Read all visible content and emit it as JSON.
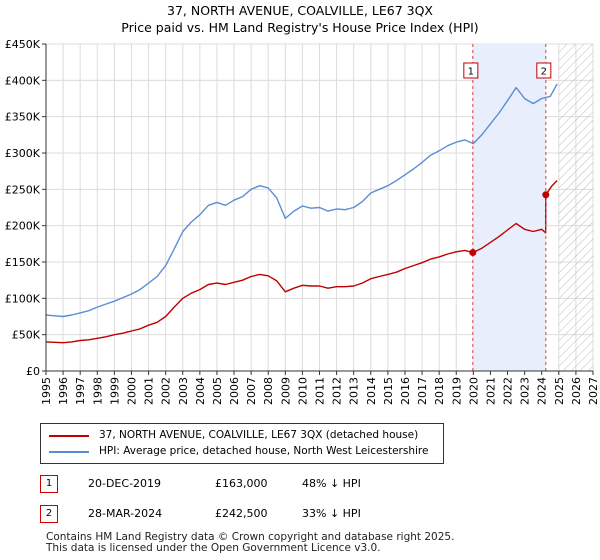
{
  "title": "37, NORTH AVENUE, COALVILLE, LE67 3QX",
  "subtitle": "Price paid vs. HM Land Registry's House Price Index (HPI)",
  "chart_data": {
    "type": "line",
    "title": "37, NORTH AVENUE, COALVILLE, LE67 3QX",
    "subtitle": "Price paid vs. HM Land Registry's House Price Index (HPI)",
    "xlim": [
      1995,
      2027
    ],
    "ylim": [
      0,
      450000
    ],
    "x_ticks": [
      1995,
      1996,
      1997,
      1998,
      1999,
      2000,
      2001,
      2002,
      2003,
      2004,
      2005,
      2006,
      2007,
      2008,
      2009,
      2010,
      2011,
      2012,
      2013,
      2014,
      2015,
      2016,
      2017,
      2018,
      2019,
      2020,
      2021,
      2022,
      2023,
      2024,
      2025,
      2026,
      2027
    ],
    "y_ticks": [
      0,
      50000,
      100000,
      150000,
      200000,
      250000,
      300000,
      350000,
      400000,
      450000
    ],
    "y_tick_labels": [
      "£0",
      "£50K",
      "£100K",
      "£150K",
      "£200K",
      "£250K",
      "£300K",
      "£350K",
      "£400K",
      "£450K"
    ],
    "grid": true,
    "shaded_span": [
      2019.97,
      2024.24
    ],
    "hatched_from": 2025.0,
    "series": [
      {
        "name": "HPI: Average price, detached house, North West Leicestershire",
        "color": "#5a8dd6",
        "x": [
          1995,
          1995.5,
          1996,
          1996.5,
          1997,
          1997.5,
          1998,
          1998.5,
          1999,
          1999.5,
          2000,
          2000.5,
          2001,
          2001.5,
          2002,
          2002.5,
          2003,
          2003.5,
          2004,
          2004.5,
          2005,
          2005.5,
          2006,
          2006.5,
          2007,
          2007.5,
          2008,
          2008.5,
          2009,
          2009.5,
          2010,
          2010.5,
          2011,
          2011.5,
          2012,
          2012.5,
          2013,
          2013.5,
          2014,
          2014.5,
          2015,
          2015.5,
          2016,
          2016.5,
          2017,
          2017.5,
          2018,
          2018.5,
          2019,
          2019.5,
          2020,
          2020.5,
          2021,
          2021.5,
          2022,
          2022.5,
          2023,
          2023.5,
          2024,
          2024.5,
          2024.9
        ],
        "values": [
          77000,
          76000,
          75000,
          77000,
          80000,
          83000,
          88000,
          92000,
          96000,
          101000,
          106000,
          112000,
          121000,
          130000,
          145000,
          168000,
          192000,
          205000,
          215000,
          228000,
          232000,
          228000,
          235000,
          240000,
          250000,
          255000,
          252000,
          238000,
          210000,
          220000,
          227000,
          224000,
          225000,
          220000,
          223000,
          222000,
          225000,
          233000,
          245000,
          250000,
          255000,
          262000,
          270000,
          278000,
          287000,
          297000,
          303000,
          310000,
          315000,
          318000,
          313000,
          325000,
          340000,
          355000,
          372000,
          390000,
          375000,
          368000,
          375000,
          378000,
          395000
        ]
      },
      {
        "name": "37, NORTH AVENUE, COALVILLE, LE67 3QX (detached house)",
        "color": "#c00000",
        "x": [
          1995,
          1995.5,
          1996,
          1996.5,
          1997,
          1997.5,
          1998,
          1998.5,
          1999,
          1999.5,
          2000,
          2000.5,
          2001,
          2001.5,
          2002,
          2002.5,
          2003,
          2003.5,
          2004,
          2004.5,
          2005,
          2005.5,
          2006,
          2006.5,
          2007,
          2007.5,
          2008,
          2008.5,
          2009,
          2009.5,
          2010,
          2010.5,
          2011,
          2011.5,
          2012,
          2012.5,
          2013,
          2013.5,
          2014,
          2014.5,
          2015,
          2015.5,
          2016,
          2016.5,
          2017,
          2017.5,
          2018,
          2018.5,
          2019,
          2019.5,
          2019.97,
          2020.5,
          2021,
          2021.5,
          2022,
          2022.5,
          2023,
          2023.5,
          2024.0,
          2024.23,
          2024.24,
          2024.6,
          2024.9
        ],
        "values": [
          40000,
          39500,
          39000,
          40000,
          42000,
          43000,
          45000,
          47000,
          50000,
          52000,
          55000,
          58000,
          63000,
          67000,
          75000,
          88000,
          100000,
          107000,
          112000,
          119000,
          121000,
          119000,
          122000,
          125000,
          130000,
          133000,
          131000,
          124000,
          109000,
          114000,
          118000,
          117000,
          117000,
          114000,
          116000,
          116000,
          117000,
          121000,
          127000,
          130000,
          133000,
          136000,
          141000,
          145000,
          149000,
          154000,
          157000,
          161000,
          164000,
          166000,
          163000,
          169000,
          177000,
          185000,
          194000,
          203000,
          195000,
          192000,
          195000,
          190000,
          242500,
          255000,
          262000
        ]
      }
    ],
    "annotations": [
      {
        "label": "1",
        "x": 2019.97,
        "y": 163000
      },
      {
        "label": "2",
        "x": 2024.24,
        "y": 242500
      }
    ]
  },
  "legend": {
    "items": [
      {
        "label": "37, NORTH AVENUE, COALVILLE, LE67 3QX (detached house)",
        "color": "#c00000"
      },
      {
        "label": "HPI: Average price, detached house, North West Leicestershire",
        "color": "#5a8dd6"
      }
    ]
  },
  "sales": [
    {
      "num": "1",
      "date": "20-DEC-2019",
      "price": "£163,000",
      "diff": "48% ↓ HPI"
    },
    {
      "num": "2",
      "date": "28-MAR-2024",
      "price": "£242,500",
      "diff": "33% ↓ HPI"
    }
  ],
  "footer": {
    "line1": "Contains HM Land Registry data © Crown copyright and database right 2025.",
    "line2": "This data is licensed under the Open Government Licence v3.0."
  }
}
